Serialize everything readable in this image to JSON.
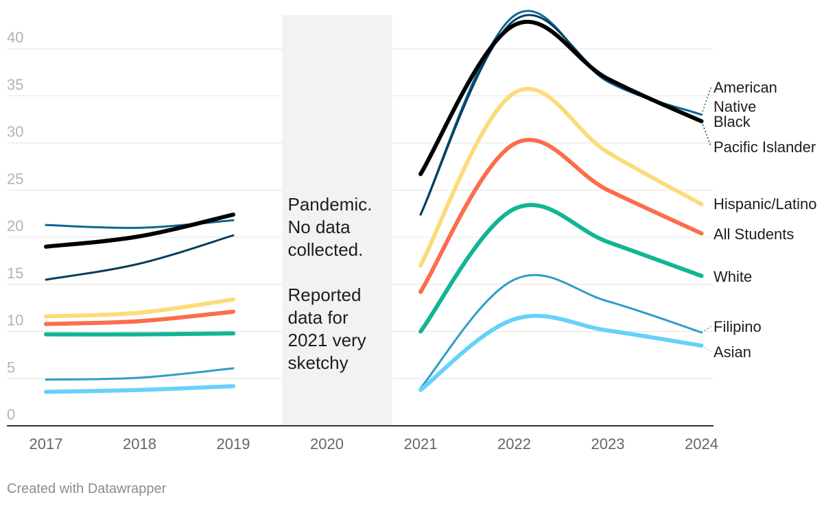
{
  "chart_data": {
    "type": "line",
    "title": "",
    "xlabel": "",
    "ylabel": "",
    "x": [
      2017,
      2018,
      2019,
      2020,
      2021,
      2022,
      2023,
      2024
    ],
    "x_tick_labels": [
      "2017",
      "2018",
      "2019",
      "2020",
      "2021",
      "2022",
      "2023",
      "2024"
    ],
    "ylim": [
      0,
      40
    ],
    "y_ticks": [
      "0",
      "5",
      "10",
      "15",
      "20",
      "25",
      "30",
      "35",
      "40"
    ],
    "gap": {
      "from": 2020,
      "to": 2020
    },
    "series": [
      {
        "name": "American Native",
        "label": "American Native",
        "color": "#0a6591",
        "width": "thin",
        "values": [
          21.3,
          21.0,
          21.8,
          null,
          22.4,
          43.5,
          36.5,
          33.0
        ]
      },
      {
        "name": "Pacific Islander",
        "label": "Pacific Islander",
        "color": "#053d5e",
        "width": "thin",
        "values": [
          15.5,
          17.2,
          20.2,
          null,
          22.4,
          43.0,
          36.8,
          32.3
        ]
      },
      {
        "name": "Black",
        "label": "Black",
        "color": "#000000",
        "width": "thick",
        "values": [
          19.0,
          20.1,
          22.4,
          null,
          26.7,
          42.5,
          36.8,
          32.3
        ]
      },
      {
        "name": "Hispanic/Latino",
        "label": "Hispanic/Latino",
        "color": "#fcdc7a",
        "width": "thick",
        "values": [
          11.6,
          12.0,
          13.4,
          null,
          17.0,
          35.3,
          29.0,
          23.5
        ]
      },
      {
        "name": "All Students",
        "label": "All Students",
        "color": "#fb6d4c",
        "width": "thick",
        "values": [
          10.8,
          11.1,
          12.1,
          null,
          14.2,
          29.9,
          25.0,
          20.4
        ]
      },
      {
        "name": "White",
        "label": "White",
        "color": "#12b594",
        "width": "thick",
        "values": [
          9.7,
          9.7,
          9.8,
          null,
          10.0,
          23.0,
          19.5,
          15.9
        ]
      },
      {
        "name": "Filipino",
        "label": "Filipino",
        "color": "#2c9ccb",
        "width": "thin",
        "values": [
          4.9,
          5.1,
          6.1,
          null,
          4.0,
          15.5,
          13.2,
          9.9
        ]
      },
      {
        "name": "Asian",
        "label": "Asian",
        "color": "#67d1fb",
        "width": "thick",
        "values": [
          3.6,
          3.8,
          4.2,
          null,
          3.8,
          11.3,
          10.1,
          8.5
        ]
      }
    ],
    "label_lines": {
      "American Native": [
        "American",
        "Native"
      ]
    },
    "annotation_lines": [
      "Pandemic.",
      "No data",
      "collected.",
      "",
      "Reported",
      "data for",
      "2021 very",
      "sketchy"
    ]
  },
  "footer": "Created with Datawrapper"
}
